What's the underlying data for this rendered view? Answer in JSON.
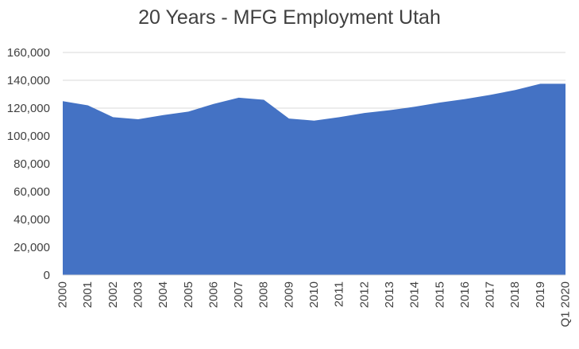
{
  "chart_data": {
    "type": "area",
    "title": "20 Years - MFG Employment Utah",
    "categories": [
      "2000",
      "2001",
      "2002",
      "2003",
      "2004",
      "2005",
      "2006",
      "2007",
      "2008",
      "2009",
      "2010",
      "2011",
      "2012",
      "2013",
      "2014",
      "2015",
      "2016",
      "2017",
      "2018",
      "2019",
      "Q1 2020"
    ],
    "series": [
      {
        "values": [
          125000,
          122000,
          113500,
          112000,
          115000,
          117500,
          123000,
          127500,
          126000,
          112500,
          111000,
          113500,
          116500,
          118500,
          121000,
          124000,
          126500,
          129500,
          133000,
          137500,
          137500
        ]
      }
    ],
    "ylim": [
      0,
      160000
    ],
    "yticks": [
      0,
      20000,
      40000,
      60000,
      80000,
      100000,
      120000,
      140000,
      160000
    ],
    "ytick_labels": [
      "0",
      "20,000",
      "40,000",
      "60,000",
      "80,000",
      "100,000",
      "120,000",
      "140,000",
      "160,000"
    ],
    "grid": true,
    "legend": "none",
    "colors": {
      "fill": "#4472c4",
      "grid": "#d9d9d9",
      "text": "#404040"
    }
  }
}
